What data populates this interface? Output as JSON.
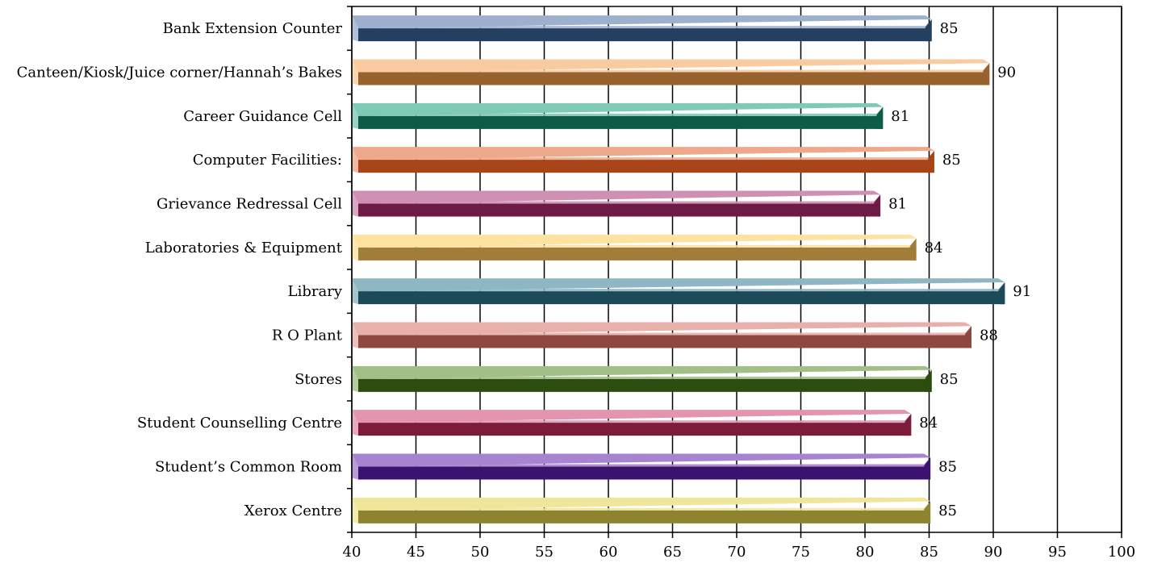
{
  "chart_data": {
    "type": "bar",
    "orientation": "horizontal",
    "categories": [
      "Bank Extension Counter",
      "Canteen/Kiosk/Juice corner/Hannah’s Bakes",
      "Career Guidance Cell",
      "Computer Facilities:",
      "Grievance Redressal Cell",
      "Laboratories & Equipment",
      "Library",
      "R O Plant",
      "Stores",
      "Student Counselling Centre",
      "Student’s Common Room",
      "Xerox Centre"
    ],
    "values": [
      85.2,
      89.7,
      81.4,
      85.4,
      81.2,
      84.0,
      90.9,
      88.3,
      85.2,
      83.6,
      85.1,
      85.1
    ],
    "value_labels": [
      "85",
      "90",
      "81",
      "85",
      "81",
      "84",
      "91",
      "88",
      "85",
      "84",
      "85",
      "85"
    ],
    "colors": [
      {
        "top": "#9db1cf",
        "bottom": "#243f60"
      },
      {
        "top": "#f9cba0",
        "bottom": "#98622e"
      },
      {
        "top": "#7fcab5",
        "bottom": "#0d5c48"
      },
      {
        "top": "#eea88c",
        "bottom": "#a84418"
      },
      {
        "top": "#cf90b4",
        "bottom": "#6e1a46"
      },
      {
        "top": "#fde2a0",
        "bottom": "#a07e3a"
      },
      {
        "top": "#8eb6c3",
        "bottom": "#1c4a58"
      },
      {
        "top": "#e8b0aa",
        "bottom": "#8e4840"
      },
      {
        "top": "#a2bf88",
        "bottom": "#2c4c10"
      },
      {
        "top": "#e394b0",
        "bottom": "#7c1c3a"
      },
      {
        "top": "#a784cf",
        "bottom": "#3c1270"
      },
      {
        "top": "#efe69c",
        "bottom": "#8e8430"
      }
    ],
    "xlim": [
      40,
      100
    ],
    "xticks": [
      40,
      45,
      50,
      55,
      60,
      65,
      70,
      75,
      80,
      85,
      90,
      95,
      100
    ],
    "xtick_labels": [
      "40",
      "45",
      "50",
      "55",
      "60",
      "65",
      "70",
      "75",
      "80",
      "85",
      "90",
      "95",
      "100"
    ],
    "grid": true,
    "legend": "none",
    "title": "",
    "xlabel": "",
    "ylabel": ""
  }
}
